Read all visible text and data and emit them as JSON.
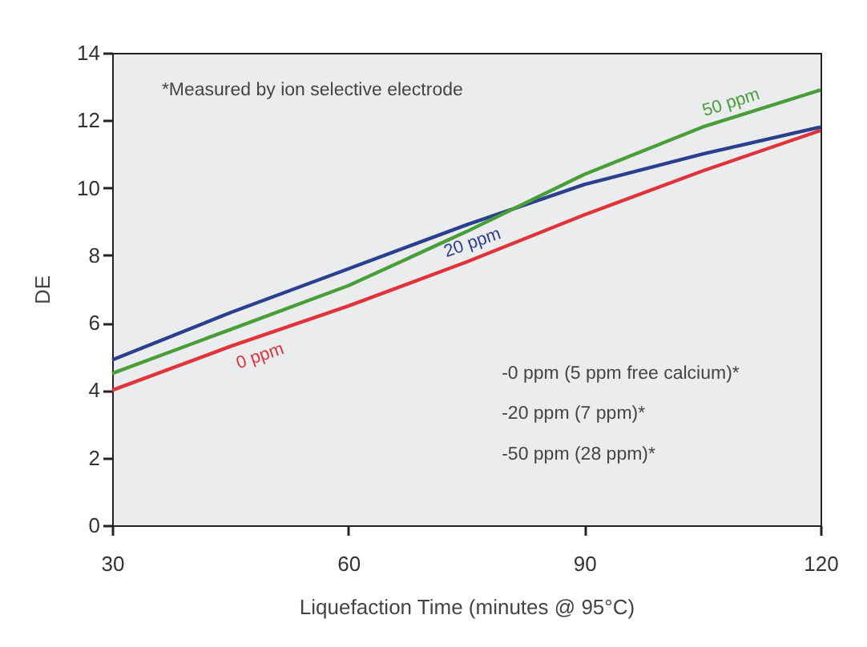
{
  "chart_data": {
    "type": "line",
    "xlabel": "Liquefaction Time (minutes @ 95°C)",
    "ylabel": "DE",
    "x": [
      30,
      45,
      60,
      75,
      90,
      105,
      120
    ],
    "series": [
      {
        "name": "0 ppm",
        "color": "#e0333c",
        "values": [
          4.0,
          5.3,
          6.5,
          7.8,
          9.2,
          10.5,
          11.7
        ]
      },
      {
        "name": "20 ppm",
        "color": "#2b3f8f",
        "values": [
          4.9,
          6.3,
          7.6,
          8.9,
          10.1,
          11.0,
          11.8
        ]
      },
      {
        "name": "50 ppm",
        "color": "#4a9e3a",
        "values": [
          4.5,
          5.8,
          7.1,
          8.7,
          10.4,
          11.8,
          12.9
        ]
      }
    ],
    "xlim": [
      30,
      120
    ],
    "xticks": [
      30,
      60,
      90,
      120
    ],
    "ylim": [
      0,
      14
    ],
    "yticks": [
      0,
      2,
      4,
      6,
      8,
      10,
      12,
      14
    ],
    "grid": false,
    "legend": false,
    "annotations": [
      "*Measured by ion selective electrode",
      "-0 ppm (5 ppm free calcium)*",
      "-20 ppm (7 ppm)*",
      "-50 ppm (28 ppm)*"
    ]
  }
}
